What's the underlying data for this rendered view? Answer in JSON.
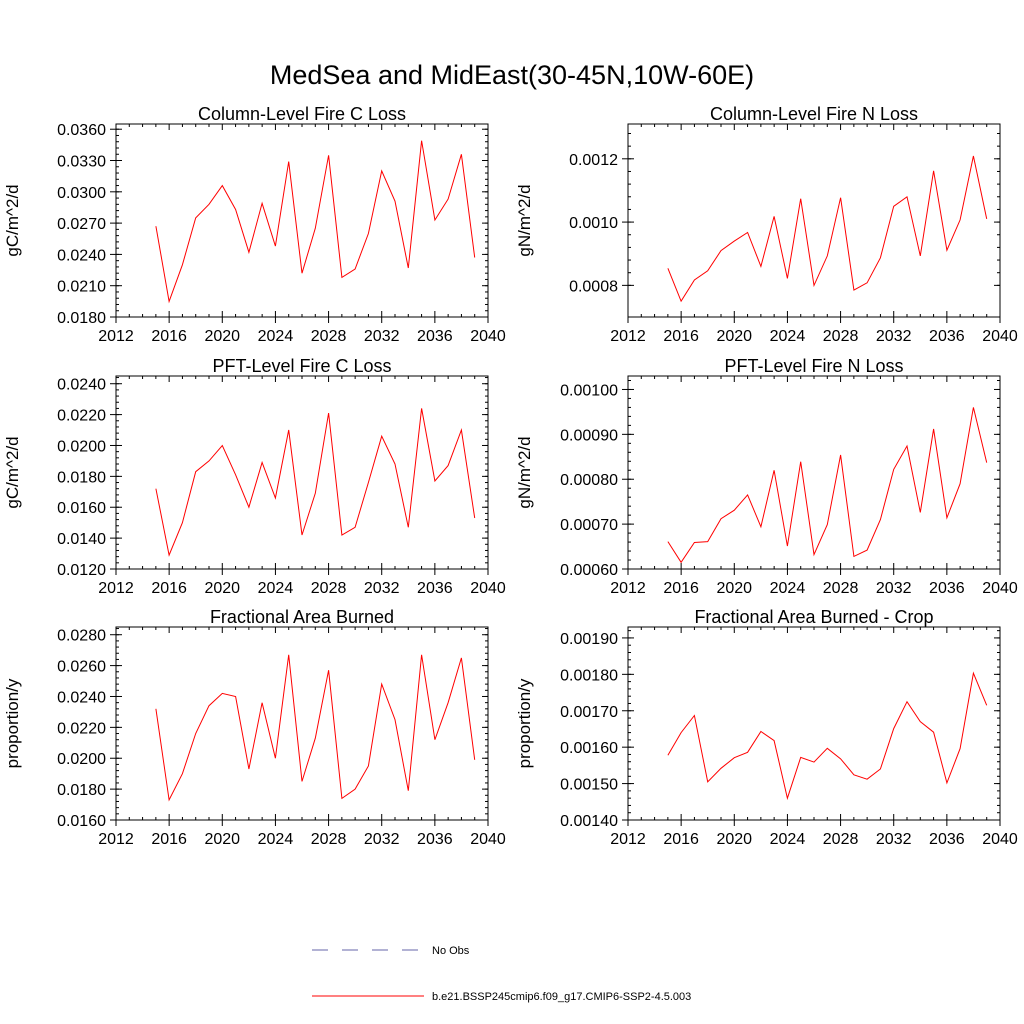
{
  "figure_title": "MedSea and MidEast(30-45N,10W-60E)",
  "series_color": "#ff0000",
  "obs_color": "#6666aa",
  "legend": {
    "obs_label": "No Obs",
    "model_label": "b.e21.BSSP245cmip6.f09_g17.CMIP6-SSP2-4.5.003"
  },
  "chart_data": [
    {
      "type": "line",
      "title": "Column-Level Fire C Loss",
      "xlabel": "",
      "ylabel": "gC/m^2/d",
      "xlim": [
        2012,
        2040
      ],
      "ylim": [
        0.018,
        0.0365
      ],
      "x_ticks": [
        "2012",
        "2016",
        "2020",
        "2024",
        "2028",
        "2032",
        "2036",
        "2040"
      ],
      "y_ticks": [
        "0.0180",
        "0.0210",
        "0.0240",
        "0.0270",
        "0.0300",
        "0.0330",
        "0.0360"
      ],
      "x": [
        2015,
        2016,
        2017,
        2018,
        2019,
        2020,
        2021,
        2022,
        2023,
        2024,
        2025,
        2026,
        2027,
        2028,
        2029,
        2030,
        2031,
        2032,
        2033,
        2034,
        2035,
        2036,
        2037,
        2038,
        2039
      ],
      "values": [
        0.0267,
        0.0195,
        0.023,
        0.0275,
        0.0288,
        0.0306,
        0.0283,
        0.0242,
        0.0289,
        0.0248,
        0.0329,
        0.0222,
        0.0265,
        0.0335,
        0.0218,
        0.0226,
        0.026,
        0.032,
        0.0291,
        0.0227,
        0.0349,
        0.0273,
        0.0293,
        0.0336,
        0.0237
      ]
    },
    {
      "type": "line",
      "title": "Column-Level Fire N Loss",
      "xlabel": "",
      "ylabel": "gN/m^2/d",
      "xlim": [
        2012,
        2040
      ],
      "ylim": [
        0.0007,
        0.00131
      ],
      "x_ticks": [
        "2012",
        "2016",
        "2020",
        "2024",
        "2028",
        "2032",
        "2036",
        "2040"
      ],
      "y_ticks": [
        "0.0008",
        "0.0010",
        "0.0012"
      ],
      "x": [
        2015,
        2016,
        2017,
        2018,
        2019,
        2020,
        2021,
        2022,
        2023,
        2024,
        2025,
        2026,
        2027,
        2028,
        2029,
        2030,
        2031,
        2032,
        2033,
        2034,
        2035,
        2036,
        2037,
        2038,
        2039
      ],
      "values": [
        0.000854,
        0.00075,
        0.000817,
        0.000846,
        0.00091,
        0.00094,
        0.000967,
        0.00086,
        0.001018,
        0.000822,
        0.001074,
        0.0008,
        0.000893,
        0.001077,
        0.000785,
        0.000808,
        0.000887,
        0.00105,
        0.00108,
        0.000893,
        0.001162,
        0.000911,
        0.001007,
        0.001209,
        0.00101
      ]
    },
    {
      "type": "line",
      "title": "PFT-Level Fire C Loss",
      "xlabel": "",
      "ylabel": "gC/m^2/d",
      "xlim": [
        2012,
        2040
      ],
      "ylim": [
        0.012,
        0.0245
      ],
      "x_ticks": [
        "2012",
        "2016",
        "2020",
        "2024",
        "2028",
        "2032",
        "2036",
        "2040"
      ],
      "y_ticks": [
        "0.0120",
        "0.0140",
        "0.0160",
        "0.0180",
        "0.0200",
        "0.0220",
        "0.0240"
      ],
      "x": [
        2015,
        2016,
        2017,
        2018,
        2019,
        2020,
        2021,
        2022,
        2023,
        2024,
        2025,
        2026,
        2027,
        2028,
        2029,
        2030,
        2031,
        2032,
        2033,
        2034,
        2035,
        2036,
        2037,
        2038,
        2039
      ],
      "values": [
        0.0172,
        0.0129,
        0.015,
        0.0183,
        0.019,
        0.02,
        0.0181,
        0.016,
        0.0189,
        0.0166,
        0.021,
        0.0142,
        0.0169,
        0.0221,
        0.0142,
        0.0147,
        0.0176,
        0.0206,
        0.0188,
        0.0147,
        0.0224,
        0.0177,
        0.0187,
        0.021,
        0.0153
      ]
    },
    {
      "type": "line",
      "title": "PFT-Level Fire N Loss",
      "xlabel": "",
      "ylabel": "gN/m^2/d",
      "xlim": [
        2012,
        2040
      ],
      "ylim": [
        0.0006,
        0.00103
      ],
      "x_ticks": [
        "2012",
        "2016",
        "2020",
        "2024",
        "2028",
        "2032",
        "2036",
        "2040"
      ],
      "y_ticks": [
        "0.00060",
        "0.00070",
        "0.00080",
        "0.00090",
        "0.00100"
      ],
      "x": [
        2015,
        2016,
        2017,
        2018,
        2019,
        2020,
        2021,
        2022,
        2023,
        2024,
        2025,
        2026,
        2027,
        2028,
        2029,
        2030,
        2031,
        2032,
        2033,
        2034,
        2035,
        2036,
        2037,
        2038,
        2039
      ],
      "values": [
        0.000661,
        0.000615,
        0.000659,
        0.000661,
        0.000712,
        0.000731,
        0.000765,
        0.000694,
        0.00082,
        0.000651,
        0.000839,
        0.000632,
        0.000699,
        0.000854,
        0.000628,
        0.000642,
        0.00071,
        0.000822,
        0.000874,
        0.000726,
        0.000912,
        0.000714,
        0.00079,
        0.00096,
        0.000837
      ]
    },
    {
      "type": "line",
      "title": "Fractional Area Burned",
      "xlabel": "",
      "ylabel": "proportion/y",
      "xlim": [
        2012,
        2040
      ],
      "ylim": [
        0.016,
        0.0285
      ],
      "x_ticks": [
        "2012",
        "2016",
        "2020",
        "2024",
        "2028",
        "2032",
        "2036",
        "2040"
      ],
      "y_ticks": [
        "0.0160",
        "0.0180",
        "0.0200",
        "0.0220",
        "0.0240",
        "0.0260",
        "0.0280"
      ],
      "x": [
        2015,
        2016,
        2017,
        2018,
        2019,
        2020,
        2021,
        2022,
        2023,
        2024,
        2025,
        2026,
        2027,
        2028,
        2029,
        2030,
        2031,
        2032,
        2033,
        2034,
        2035,
        2036,
        2037,
        2038,
        2039
      ],
      "values": [
        0.0232,
        0.0173,
        0.019,
        0.0216,
        0.0234,
        0.0242,
        0.024,
        0.0193,
        0.0236,
        0.02,
        0.0267,
        0.0185,
        0.0213,
        0.0257,
        0.0174,
        0.018,
        0.0195,
        0.0248,
        0.0225,
        0.0179,
        0.0267,
        0.0212,
        0.0236,
        0.0265,
        0.0199
      ]
    },
    {
      "type": "line",
      "title": "Fractional Area Burned - Crop",
      "xlabel": "",
      "ylabel": "proportion/y",
      "xlim": [
        2012,
        2040
      ],
      "ylim": [
        0.0014,
        0.00193
      ],
      "x_ticks": [
        "2012",
        "2016",
        "2020",
        "2024",
        "2028",
        "2032",
        "2036",
        "2040"
      ],
      "y_ticks": [
        "0.00140",
        "0.00150",
        "0.00160",
        "0.00170",
        "0.00180",
        "0.00190"
      ],
      "x": [
        2015,
        2016,
        2017,
        2018,
        2019,
        2020,
        2021,
        2022,
        2023,
        2024,
        2025,
        2026,
        2027,
        2028,
        2029,
        2030,
        2031,
        2032,
        2033,
        2034,
        2035,
        2036,
        2037,
        2038,
        2039
      ],
      "values": [
        0.001578,
        0.00164,
        0.001687,
        0.001505,
        0.001542,
        0.001571,
        0.001586,
        0.001643,
        0.001618,
        0.00146,
        0.001572,
        0.001559,
        0.001597,
        0.001568,
        0.001524,
        0.001512,
        0.00154,
        0.001651,
        0.001725,
        0.00167,
        0.001641,
        0.001502,
        0.001596,
        0.001803,
        0.001715
      ]
    }
  ]
}
